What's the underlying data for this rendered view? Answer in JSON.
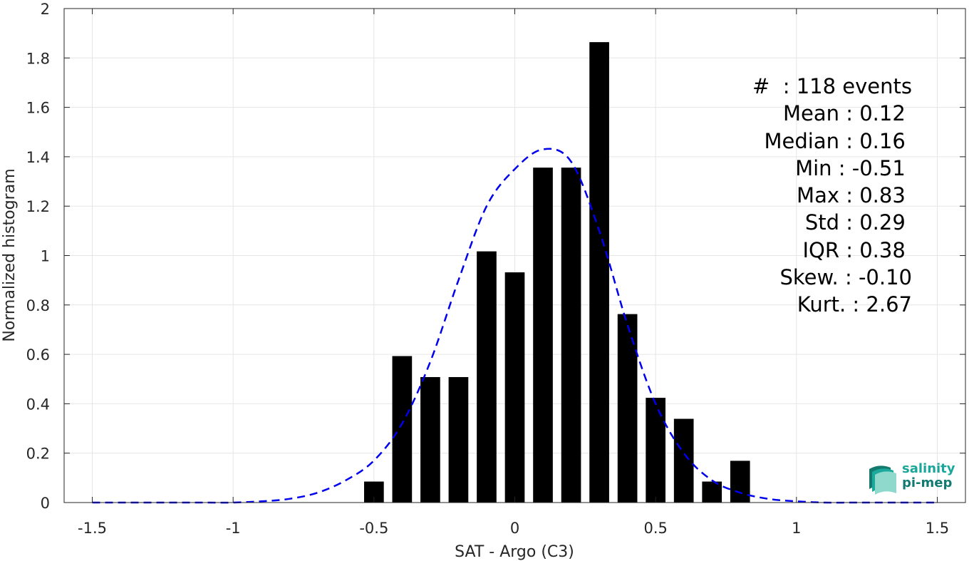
{
  "chart_data": {
    "type": "bar",
    "title": "",
    "xlabel": "SAT - Argo (C3)",
    "ylabel": "Normalized histogram",
    "xlim": [
      -1.6,
      1.6
    ],
    "ylim": [
      0,
      2
    ],
    "grid": true,
    "x_ticks": [
      -1.5,
      -1,
      -0.5,
      0,
      0.5,
      1,
      1.5
    ],
    "x_tick_labels": [
      "-1.5",
      "-1",
      "-0.5",
      "0",
      "0.5",
      "1",
      "1.5"
    ],
    "y_ticks": [
      0,
      0.2,
      0.4,
      0.6,
      0.8,
      1,
      1.2,
      1.4,
      1.6,
      1.8,
      2
    ],
    "y_tick_labels": [
      "0",
      "0.2",
      "0.4",
      "0.6",
      "0.8",
      "1",
      "1.2",
      "1.4",
      "1.6",
      "1.8",
      "2"
    ],
    "bar_width": 0.07,
    "bar_color": "#000000",
    "bars": {
      "x": [
        -0.5,
        -0.4,
        -0.3,
        -0.2,
        -0.1,
        0.0,
        0.1,
        0.2,
        0.3,
        0.4,
        0.5,
        0.6,
        0.7,
        0.8
      ],
      "values": [
        0.085,
        0.593,
        0.508,
        0.508,
        1.017,
        0.932,
        1.356,
        1.356,
        1.864,
        0.763,
        0.424,
        0.339,
        0.085,
        0.169
      ]
    },
    "fit_curve": {
      "style": "dashed",
      "color": "#0000ee",
      "x": [
        -1.5,
        -1.4,
        -1.3,
        -1.2,
        -1.1,
        -1.0,
        -0.9,
        -0.8,
        -0.7,
        -0.6,
        -0.5,
        -0.4,
        -0.3,
        -0.2,
        -0.1,
        0.0,
        0.1,
        0.2,
        0.3,
        0.4,
        0.5,
        0.6,
        0.7,
        0.8,
        0.9,
        1.0,
        1.1,
        1.2,
        1.3,
        1.4,
        1.5
      ],
      "y": [
        0.0,
        0.0,
        0.0,
        0.0,
        0.0,
        0.0,
        0.005,
        0.015,
        0.04,
        0.09,
        0.17,
        0.32,
        0.57,
        0.9,
        1.2,
        1.35,
        1.43,
        1.38,
        1.1,
        0.72,
        0.4,
        0.2,
        0.09,
        0.04,
        0.015,
        0.005,
        0.0,
        0.0,
        0.0,
        0.0,
        0.0
      ]
    },
    "annotations": {
      "lines": [
        "#  : 118 events",
        "Mean : 0.12 ",
        "Median : 0.16 ",
        "Min : -0.51 ",
        "Max : 0.83 ",
        "Std : 0.29 ",
        "IQR : 0.38 ",
        "Skew. : -0.10",
        "Kurt. : 2.67"
      ]
    }
  },
  "logo": {
    "line1": "salinity",
    "line2": "pi-mep"
  }
}
